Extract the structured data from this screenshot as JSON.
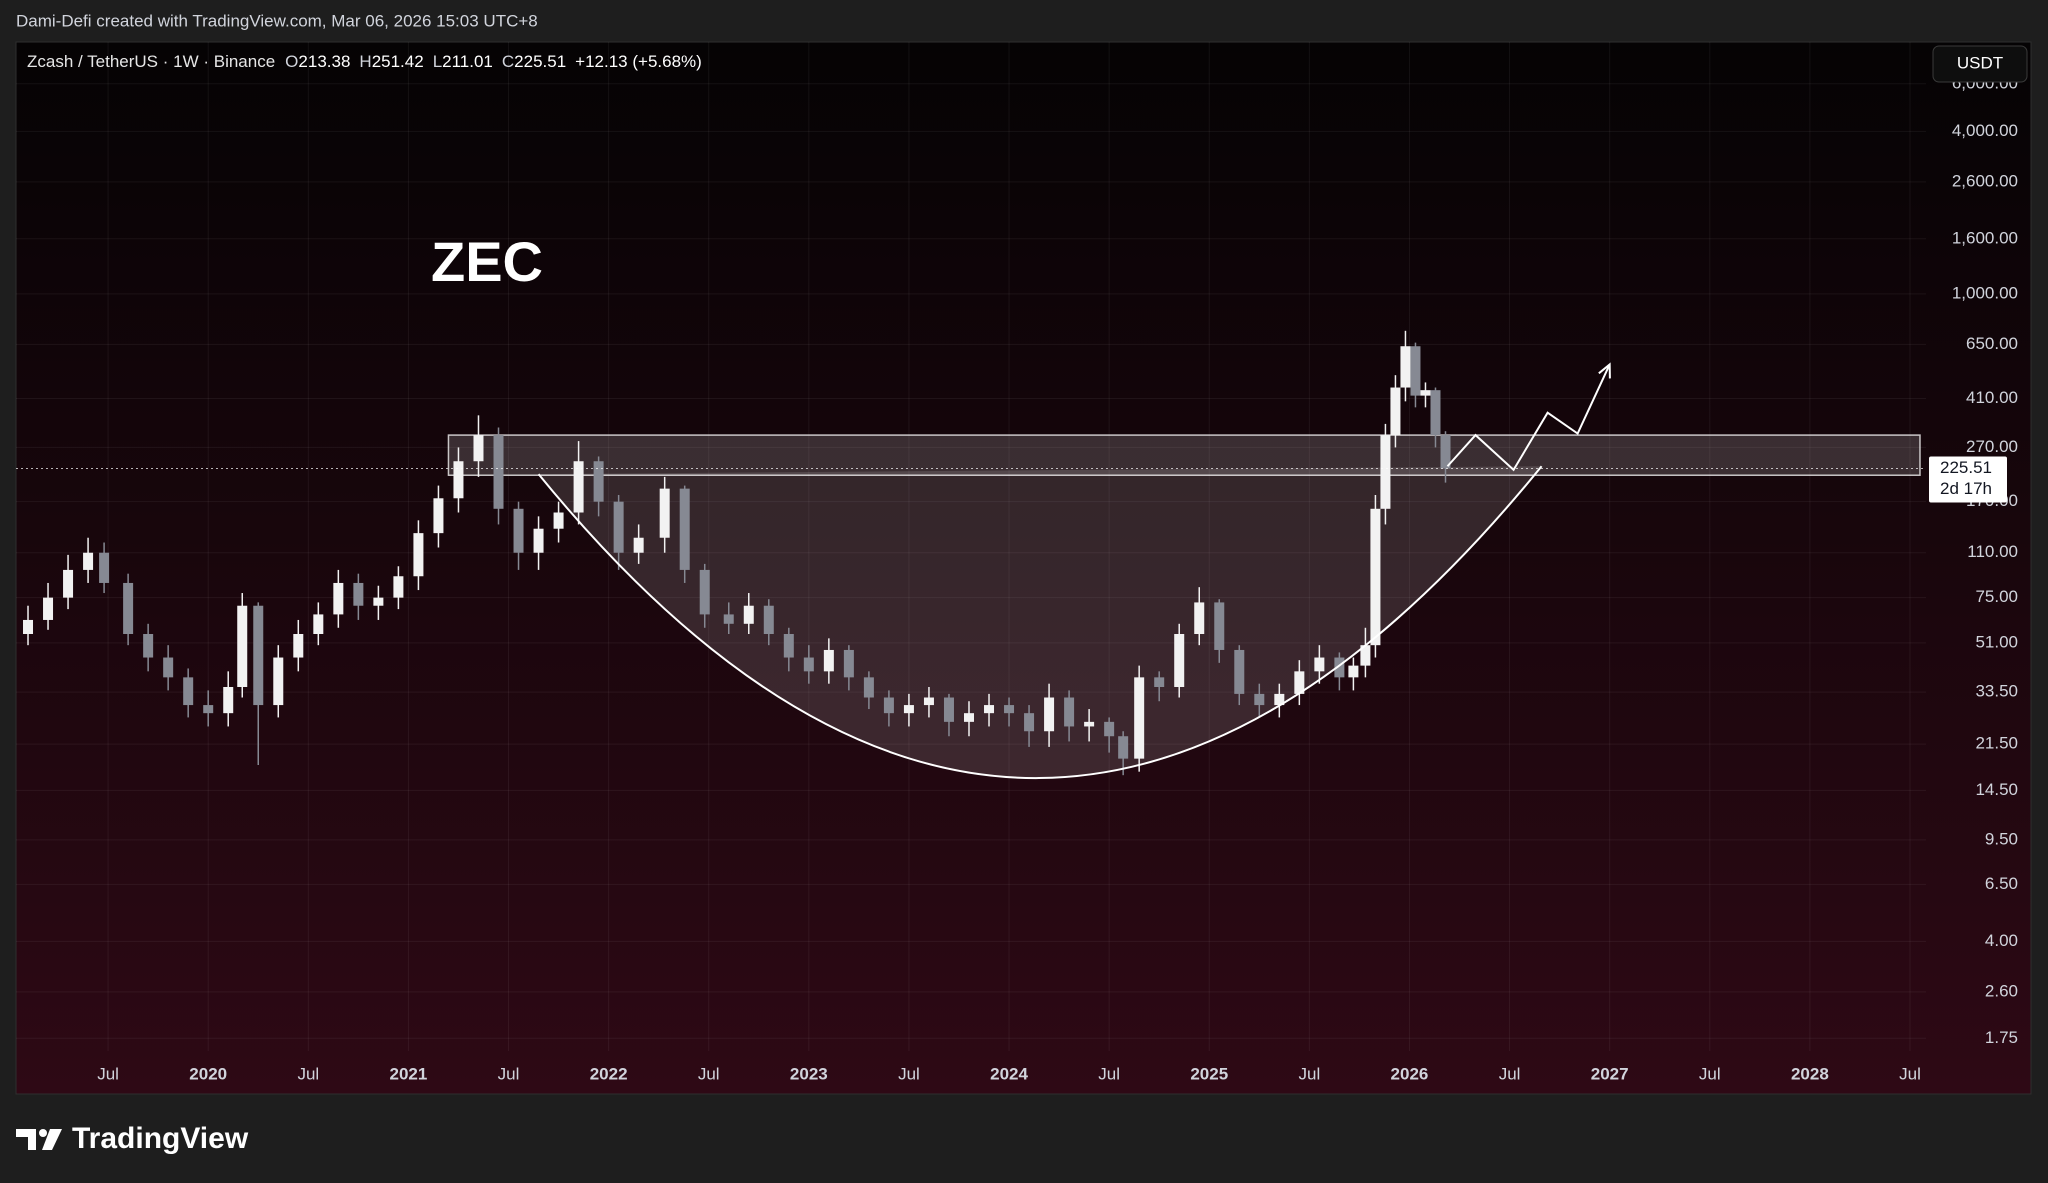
{
  "header": {
    "credit": "Dami-Defi created with TradingView.com, Mar 06, 2026 15:03 UTC+8"
  },
  "footer": {
    "logo": "TradingView"
  },
  "chart_data": {
    "type": "candlestick",
    "title": "Zcash / TetherUS · 1W · Binance",
    "ohlc": [
      {
        "label": "O",
        "value": 213.38
      },
      {
        "label": "H",
        "value": 251.42
      },
      {
        "label": "L",
        "value": 211.01
      },
      {
        "label": "C",
        "value": 225.51
      }
    ],
    "change": "+12.13 (+5.68%)",
    "currency": "USDT",
    "annotation": "ZEC",
    "last_price": 225.51,
    "countdown": "2d 17h",
    "log_scale": true,
    "grid": true,
    "up_color": "#f2f2f2",
    "down_color": "#868993",
    "xlim": [
      2019.04,
      2028.58
    ],
    "ylim": [
      1.57,
      8570
    ],
    "xticks": [
      {
        "value": 2019.5,
        "label": "Jul"
      },
      {
        "value": 2020,
        "label": "2020"
      },
      {
        "value": 2020.5,
        "label": "Jul"
      },
      {
        "value": 2021,
        "label": "2021"
      },
      {
        "value": 2021.5,
        "label": "Jul"
      },
      {
        "value": 2022,
        "label": "2022"
      },
      {
        "value": 2022.5,
        "label": "Jul"
      },
      {
        "value": 2023,
        "label": "2023"
      },
      {
        "value": 2023.5,
        "label": "Jul"
      },
      {
        "value": 2024,
        "label": "2024"
      },
      {
        "value": 2024.5,
        "label": "Jul"
      },
      {
        "value": 2025,
        "label": "2025"
      },
      {
        "value": 2025.5,
        "label": "Jul"
      },
      {
        "value": 2026,
        "label": "2026"
      },
      {
        "value": 2026.5,
        "label": "Jul"
      },
      {
        "value": 2027,
        "label": "2027"
      },
      {
        "value": 2027.5,
        "label": "Jul"
      },
      {
        "value": 2028,
        "label": "2028"
      },
      {
        "value": 2028.5,
        "label": "Jul"
      }
    ],
    "yticks": [
      {
        "value": 6000,
        "label": "6,000.00"
      },
      {
        "value": 4000,
        "label": "4,000.00"
      },
      {
        "value": 2600,
        "label": "2,600.00"
      },
      {
        "value": 1600,
        "label": "1,600.00"
      },
      {
        "value": 1000,
        "label": "1,000.00"
      },
      {
        "value": 650,
        "label": "650.00"
      },
      {
        "value": 410,
        "label": "410.00"
      },
      {
        "value": 270,
        "label": "270.00"
      },
      {
        "value": 170,
        "label": "170.00"
      },
      {
        "value": 110,
        "label": "110.00"
      },
      {
        "value": 75,
        "label": "75.00"
      },
      {
        "value": 51,
        "label": "51.00"
      },
      {
        "value": 33.5,
        "label": "33.50"
      },
      {
        "value": 21.5,
        "label": "21.50"
      },
      {
        "value": 14.5,
        "label": "14.50"
      },
      {
        "value": 9.5,
        "label": "9.50"
      },
      {
        "value": 6.5,
        "label": "6.50"
      },
      {
        "value": 4,
        "label": "4.00"
      },
      {
        "value": 2.6,
        "label": "2.60"
      },
      {
        "value": 1.75,
        "label": "1.75"
      }
    ],
    "x": [
      2019.1,
      2019.2,
      2019.3,
      2019.4,
      2019.48,
      2019.6,
      2019.7,
      2019.8,
      2019.9,
      2020.0,
      2020.1,
      2020.17,
      2020.25,
      2020.35,
      2020.45,
      2020.55,
      2020.65,
      2020.75,
      2020.85,
      2020.95,
      2021.05,
      2021.15,
      2021.25,
      2021.35,
      2021.45,
      2021.55,
      2021.65,
      2021.75,
      2021.85,
      2021.95,
      2022.05,
      2022.15,
      2022.28,
      2022.38,
      2022.48,
      2022.6,
      2022.7,
      2022.8,
      2022.9,
      2023.0,
      2023.1,
      2023.2,
      2023.3,
      2023.4,
      2023.5,
      2023.6,
      2023.7,
      2023.8,
      2023.9,
      2024.0,
      2024.1,
      2024.2,
      2024.3,
      2024.4,
      2024.5,
      2024.57,
      2024.65,
      2024.75,
      2024.85,
      2024.95,
      2025.05,
      2025.15,
      2025.25,
      2025.35,
      2025.45,
      2025.55,
      2025.65,
      2025.72,
      2025.78,
      2025.83,
      2025.88,
      2025.93,
      2025.98,
      2026.03,
      2026.08,
      2026.13,
      2026.18
    ],
    "open": [
      55,
      62,
      75,
      95,
      110,
      85,
      55,
      45,
      38,
      30,
      28,
      35,
      70,
      30,
      45,
      55,
      65,
      85,
      70,
      75,
      90,
      130,
      175,
      240,
      300,
      160,
      110,
      135,
      155,
      240,
      170,
      110,
      125,
      190,
      95,
      65,
      60,
      70,
      55,
      45,
      40,
      48,
      38,
      32,
      28,
      30,
      32,
      26,
      28,
      30,
      28,
      24,
      32,
      25,
      26,
      23,
      19,
      38,
      35,
      55,
      72,
      48,
      33,
      30,
      33,
      40,
      45,
      38,
      42,
      50,
      160,
      300,
      450,
      640,
      420,
      440,
      300
    ],
    "high": [
      70,
      85,
      108,
      125,
      120,
      92,
      60,
      50,
      41,
      34,
      40,
      78,
      72,
      50,
      62,
      72,
      95,
      92,
      83,
      98,
      145,
      195,
      270,
      355,
      320,
      170,
      150,
      170,
      285,
      250,
      180,
      140,
      210,
      195,
      100,
      72,
      78,
      74,
      58,
      50,
      53,
      50,
      40,
      34,
      33,
      35,
      33,
      31,
      33,
      32,
      30,
      36,
      34,
      29,
      27,
      24,
      42,
      40,
      60,
      82,
      74,
      50,
      36,
      36,
      44,
      50,
      47,
      45,
      58,
      180,
      330,
      500,
      730,
      660,
      470,
      450,
      310
    ],
    "low": [
      50,
      57,
      68,
      85,
      78,
      50,
      40,
      34,
      27,
      25,
      25,
      32,
      18,
      27,
      40,
      50,
      58,
      62,
      62,
      68,
      80,
      115,
      155,
      210,
      140,
      95,
      95,
      120,
      140,
      150,
      95,
      100,
      110,
      85,
      58,
      55,
      55,
      50,
      40,
      36,
      36,
      34,
      29,
      25,
      25,
      27,
      23,
      23,
      25,
      25,
      21,
      21,
      22,
      22,
      20,
      16.5,
      17,
      31,
      32,
      50,
      43,
      30,
      27,
      27,
      30,
      36,
      34,
      34,
      38,
      45,
      140,
      270,
      400,
      380,
      380,
      270,
      200
    ],
    "close": [
      62,
      75,
      95,
      110,
      85,
      55,
      45,
      38,
      30,
      28,
      35,
      70,
      30,
      45,
      55,
      65,
      85,
      70,
      75,
      90,
      130,
      175,
      240,
      300,
      160,
      110,
      135,
      155,
      240,
      170,
      110,
      125,
      190,
      95,
      65,
      60,
      70,
      55,
      45,
      40,
      48,
      38,
      32,
      28,
      30,
      32,
      26,
      28,
      30,
      28,
      24,
      32,
      25,
      26,
      23,
      19,
      38,
      35,
      55,
      72,
      48,
      33,
      30,
      33,
      40,
      45,
      38,
      42,
      50,
      160,
      300,
      450,
      640,
      420,
      440,
      300,
      225.51
    ],
    "drawings": {
      "zone": {
        "x": [
          2021.2,
          2028.55
        ],
        "y": [
          213,
          300
        ]
      },
      "cup": {
        "x": [
          2021.65,
          2024.15,
          2026.66
        ],
        "y": [
          215,
          16.1,
          230
        ]
      },
      "projection": {
        "x": [
          2026.19,
          2026.33,
          2026.52,
          2026.69,
          2026.84,
          2027.0
        ],
        "y": [
          230,
          300,
          223,
          363,
          304,
          548
        ]
      }
    }
  }
}
